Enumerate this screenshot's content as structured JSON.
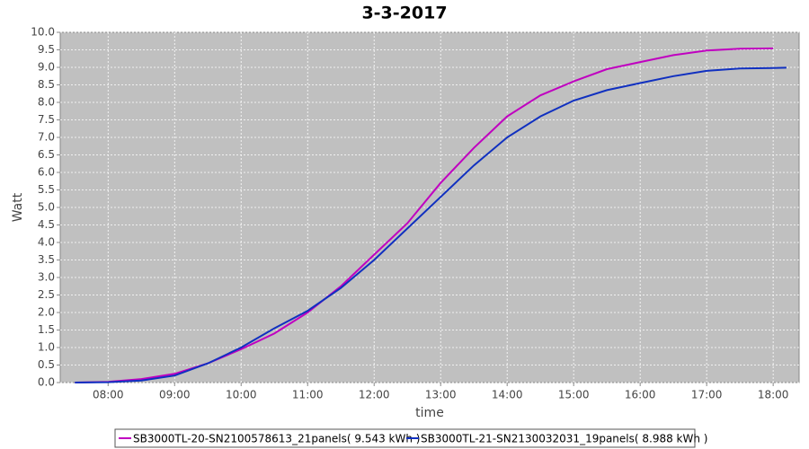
{
  "chart_data": {
    "type": "line",
    "title": "3-3-2017",
    "xlabel": "time",
    "ylabel": "Watt",
    "xlim": [
      7.28,
      18.39
    ],
    "ylim": [
      0,
      10
    ],
    "xticks": [
      {
        "value": 8,
        "label": "08:00"
      },
      {
        "value": 9,
        "label": "09:00"
      },
      {
        "value": 10,
        "label": "10:00"
      },
      {
        "value": 11,
        "label": "11:00"
      },
      {
        "value": 12,
        "label": "12:00"
      },
      {
        "value": 13,
        "label": "13:00"
      },
      {
        "value": 14,
        "label": "14:00"
      },
      {
        "value": 15,
        "label": "15:00"
      },
      {
        "value": 16,
        "label": "16:00"
      },
      {
        "value": 17,
        "label": "17:00"
      },
      {
        "value": 18,
        "label": "18:00"
      }
    ],
    "yticks": [
      {
        "value": 0,
        "label": "0.0"
      },
      0.5,
      {
        "value": 1,
        "label": "1.0"
      },
      1.5,
      {
        "value": 2,
        "label": "2.0"
      },
      2.5,
      {
        "value": 3,
        "label": "3.0"
      },
      3.5,
      {
        "value": 4,
        "label": "4.0"
      },
      4.5,
      {
        "value": 5,
        "label": "5.0"
      },
      5.5,
      {
        "value": 6,
        "label": "6.0"
      },
      6.5,
      {
        "value": 7,
        "label": "7.0"
      },
      7.5,
      {
        "value": 8,
        "label": "8.0"
      },
      8.5,
      {
        "value": 9,
        "label": "9.0"
      },
      9.5,
      {
        "value": 10,
        "label": "10.0"
      }
    ],
    "grid": true,
    "background": "#c0c0c0",
    "series": [
      {
        "name": "SB3000TL-20-SN2100578613_21panels( 9.543 kWh )",
        "color": "#c000c0",
        "x": [
          7.5,
          8,
          8.5,
          9,
          9.5,
          10,
          10.5,
          11,
          11.5,
          12,
          12.5,
          13,
          13.5,
          14,
          14.5,
          15,
          15.5,
          16,
          16.5,
          17,
          17.5,
          18
        ],
        "values": [
          0,
          0.02,
          0.1,
          0.25,
          0.55,
          0.95,
          1.4,
          2.0,
          2.75,
          3.65,
          4.55,
          5.7,
          6.7,
          7.6,
          8.2,
          8.6,
          8.95,
          9.15,
          9.35,
          9.48,
          9.53,
          9.54
        ]
      },
      {
        "name": "SB3000TL-21-SN2130032031_19panels( 8.988 kWh )",
        "color": "#1030c0",
        "x": [
          7.5,
          8,
          8.5,
          9,
          9.5,
          10,
          10.5,
          11,
          11.5,
          12,
          12.5,
          13,
          13.5,
          14,
          14.5,
          15,
          15.5,
          16,
          16.5,
          17,
          17.5,
          18,
          18.2
        ],
        "values": [
          0,
          0.01,
          0.06,
          0.2,
          0.55,
          1.0,
          1.55,
          2.05,
          2.7,
          3.5,
          4.4,
          5.3,
          6.2,
          7.0,
          7.6,
          8.05,
          8.35,
          8.55,
          8.75,
          8.9,
          8.97,
          8.98,
          8.99
        ]
      }
    ]
  }
}
